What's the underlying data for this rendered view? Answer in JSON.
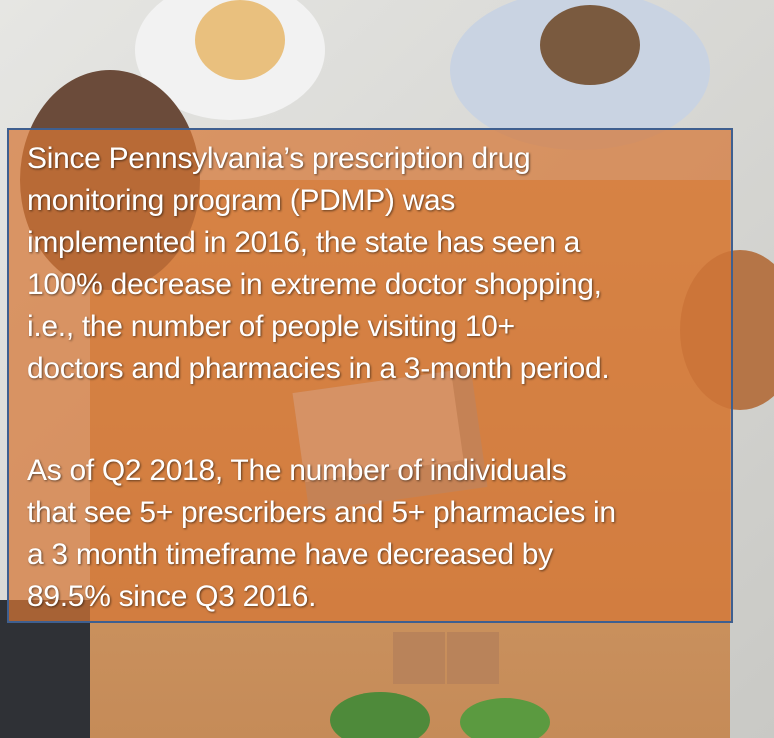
{
  "paragraphs": [
    {
      "lines": [
        "Since Pennsylvania’s prescription drug",
        "monitoring program (PDMP) was",
        "implemented in 2016, the state has seen a",
        "100% decrease in extreme doctor shopping,",
        "i.e., the number of people visiting 10+",
        "doctors and pharmacies in a 3-month period."
      ]
    },
    {
      "lines": [
        "As of Q2 2018, The number of individuals",
        "that see 5+ prescribers and 5+ pharmacies in",
        "a 3 month timeframe have decreased by",
        "89.5% since Q3 2016."
      ]
    }
  ]
}
